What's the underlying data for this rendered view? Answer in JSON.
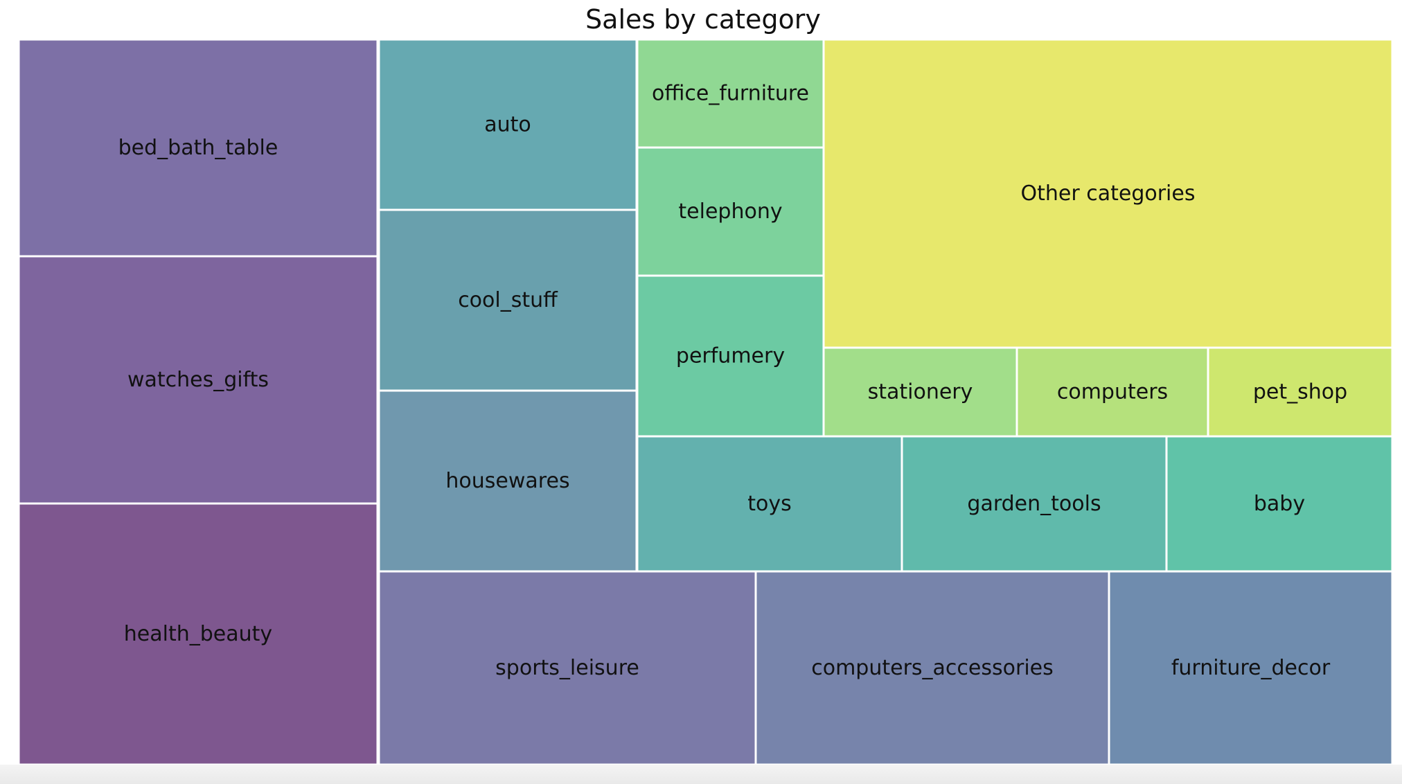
{
  "chart_data": {
    "type": "treemap",
    "title": "Sales by category",
    "items": [
      {
        "name": "bed_bath_table",
        "color": "#7d70a6"
      },
      {
        "name": "watches_gifts",
        "color": "#7e659e"
      },
      {
        "name": "health_beauty",
        "color": "#7e578f"
      },
      {
        "name": "auto",
        "color": "#66a9b1"
      },
      {
        "name": "cool_stuff",
        "color": "#69a0ad"
      },
      {
        "name": "housewares",
        "color": "#7098ae"
      },
      {
        "name": "office_furniture",
        "color": "#90d893"
      },
      {
        "name": "telephony",
        "color": "#7dd29c"
      },
      {
        "name": "perfumery",
        "color": "#6ccaa3"
      },
      {
        "name": "Other categories",
        "color": "#e7e86c"
      },
      {
        "name": "stationery",
        "color": "#a2de8a"
      },
      {
        "name": "computers",
        "color": "#b5e17c"
      },
      {
        "name": "pet_shop",
        "color": "#cee76e"
      },
      {
        "name": "toys",
        "color": "#63b1ae"
      },
      {
        "name": "garden_tools",
        "color": "#60baab"
      },
      {
        "name": "baby",
        "color": "#60c3a8"
      },
      {
        "name": "sports_leisure",
        "color": "#7b7aa8"
      },
      {
        "name": "computers_accessories",
        "color": "#7784ab"
      },
      {
        "name": "furniture_decor",
        "color": "#6f8cae"
      }
    ]
  }
}
